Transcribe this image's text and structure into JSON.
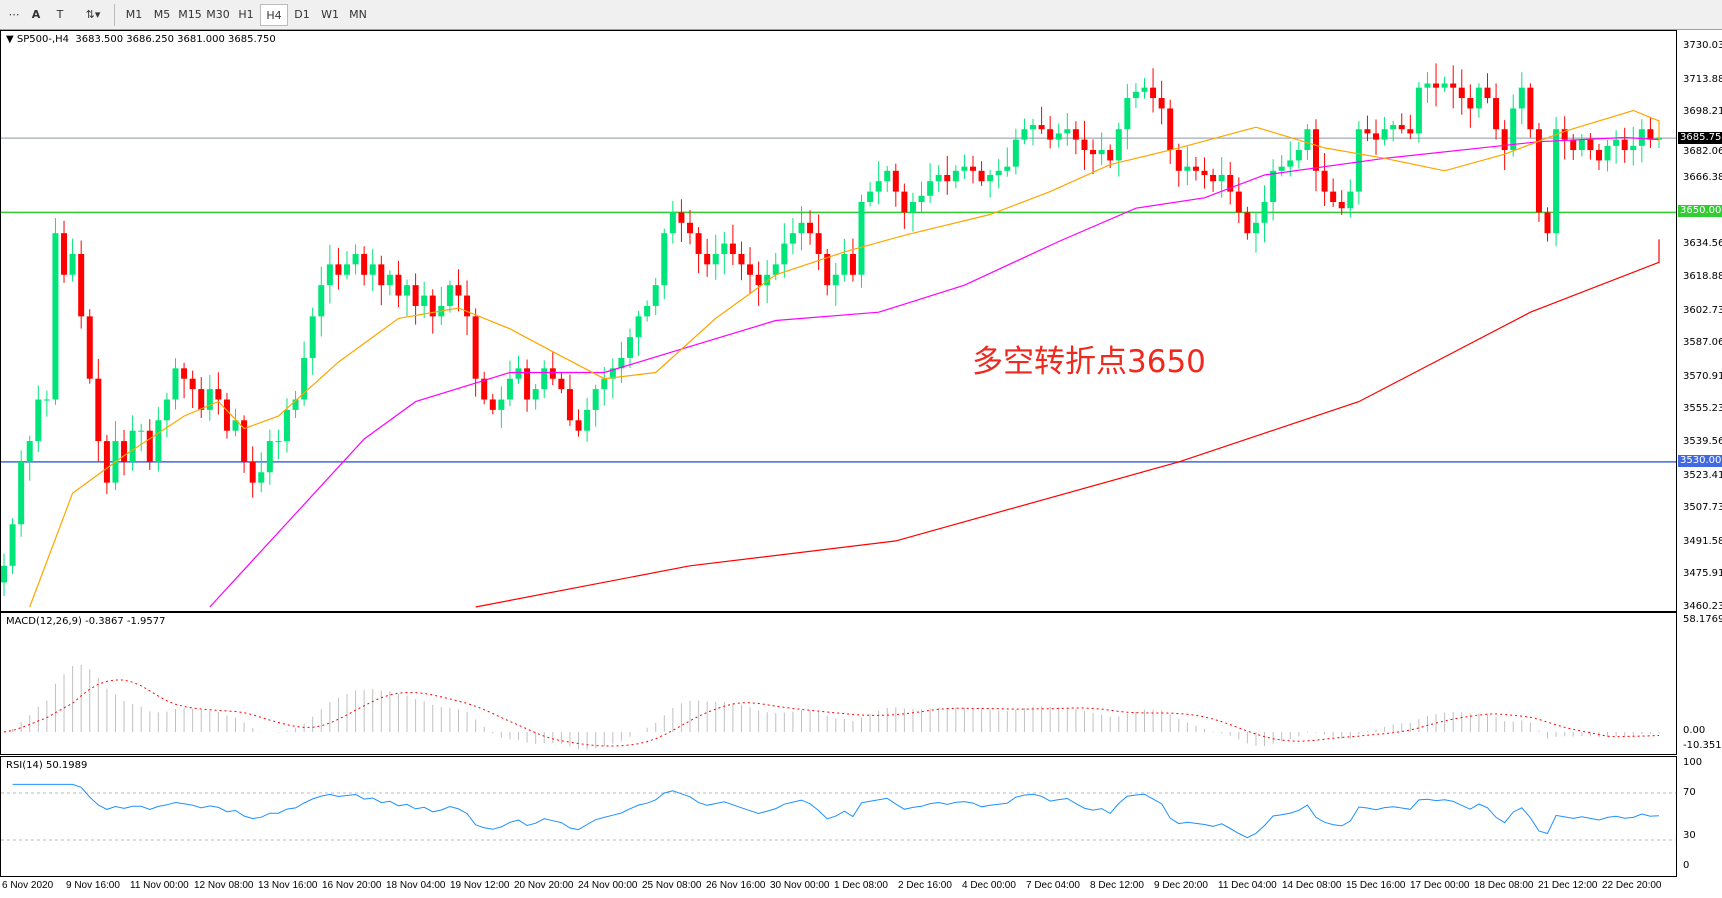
{
  "toolbar": {
    "tools": [
      "crosshair",
      "text-A",
      "text-label",
      "arrows"
    ],
    "timeframes": [
      "M1",
      "M5",
      "M15",
      "M30",
      "H1",
      "H4",
      "D1",
      "W1",
      "MN"
    ],
    "active": "H4"
  },
  "header": {
    "symbol": "SP500-,H4",
    "ohlc": "3683.500 3686.250 3681.000 3685.750"
  },
  "annotation": "多空转折点3650",
  "price_axis": [
    "3730.035",
    "3713.885",
    "3698.210",
    "3682.060",
    "3666.385",
    "3634.560",
    "3618.885",
    "3602.735",
    "3587.060",
    "3570.910",
    "3555.235",
    "3539.560",
    "3523.410",
    "3507.735",
    "3491.585",
    "3475.910",
    "3460.235"
  ],
  "levels": {
    "current": {
      "label": "3685.750",
      "value": 3685.75,
      "color": "#808080"
    },
    "green": {
      "label": "3650.000",
      "value": 3650,
      "color": "#32cd32"
    },
    "blue": {
      "label": "3530.000",
      "value": 3530,
      "color": "#4169e1"
    }
  },
  "macd": {
    "title": "MACD(12,26,9) -0.3867 -1.9577",
    "axis": [
      "58.1769",
      "0.00",
      "-10.351"
    ]
  },
  "rsi": {
    "title": "RSI(14) 50.1989",
    "axis": [
      "100",
      "70",
      "30",
      "0"
    ]
  },
  "time_axis": [
    "6 Nov 2020",
    "9 Nov 16:00",
    "11 Nov 00:00",
    "12 Nov 08:00",
    "13 Nov 16:00",
    "16 Nov 20:00",
    "18 Nov 04:00",
    "19 Nov 12:00",
    "20 Nov 20:00",
    "24 Nov 00:00",
    "25 Nov 08:00",
    "26 Nov 16:00",
    "30 Nov 00:00",
    "1 Dec 08:00",
    "2 Dec 16:00",
    "4 Dec 00:00",
    "7 Dec 04:00",
    "8 Dec 12:00",
    "9 Dec 20:00",
    "11 Dec 04:00",
    "14 Dec 08:00",
    "15 Dec 16:00",
    "17 Dec 00:00",
    "18 Dec 08:00",
    "21 Dec 12:00",
    "22 Dec 20:00"
  ],
  "chart_data": {
    "type": "candlestick",
    "ylim": [
      3460.235,
      3730.035
    ],
    "colors": {
      "bull": "#00e57a",
      "bear": "#ff0000",
      "ma_fast": "#ffa500",
      "ma_mid": "#ff00ff",
      "ma_slow": "#ff0000",
      "macd_hist": "#c0c0c0",
      "macd_signal": "#ff0000",
      "rsi": "#1e90ff"
    },
    "closes": [
      3480,
      3500,
      3530,
      3540,
      3560,
      3560,
      3640,
      3620,
      3630,
      3600,
      3570,
      3540,
      3520,
      3540,
      3530,
      3545,
      3545,
      3530,
      3550,
      3560,
      3575,
      3570,
      3565,
      3555,
      3565,
      3560,
      3545,
      3550,
      3530,
      3520,
      3525,
      3540,
      3540,
      3555,
      3560,
      3580,
      3600,
      3615,
      3625,
      3620,
      3625,
      3630,
      3620,
      3625,
      3615,
      3620,
      3610,
      3615,
      3605,
      3610,
      3600,
      3605,
      3615,
      3610,
      3600,
      3570,
      3560,
      3555,
      3560,
      3570,
      3575,
      3560,
      3565,
      3575,
      3570,
      3565,
      3550,
      3545,
      3555,
      3565,
      3570,
      3575,
      3580,
      3590,
      3600,
      3605,
      3615,
      3640,
      3650,
      3645,
      3640,
      3630,
      3625,
      3630,
      3635,
      3630,
      3625,
      3620,
      3615,
      3620,
      3625,
      3635,
      3640,
      3645,
      3640,
      3630,
      3615,
      3620,
      3630,
      3620,
      3655,
      3660,
      3665,
      3670,
      3660,
      3650,
      3655,
      3658,
      3665,
      3668,
      3665,
      3670,
      3672,
      3670,
      3665,
      3668,
      3670,
      3672,
      3685,
      3690,
      3692,
      3690,
      3685,
      3688,
      3690,
      3685,
      3680,
      3678,
      3680,
      3675,
      3690,
      3705,
      3708,
      3710,
      3705,
      3700,
      3680,
      3670,
      3672,
      3670,
      3668,
      3665,
      3668,
      3660,
      3650,
      3640,
      3645,
      3655,
      3670,
      3672,
      3675,
      3680,
      3690,
      3670,
      3660,
      3655,
      3652,
      3660,
      3690,
      3688,
      3685,
      3690,
      3692,
      3690,
      3688,
      3710,
      3712,
      3710,
      3712,
      3710,
      3705,
      3700,
      3710,
      3705,
      3690,
      3680,
      3700,
      3710,
      3690,
      3650,
      3640,
      3690,
      3685,
      3680,
      3685,
      3680,
      3675,
      3682,
      3685,
      3680,
      3682,
      3690,
      3685,
      3686
    ],
    "ma_fast": [
      [
        3,
        3460
      ],
      [
        8,
        3515
      ],
      [
        14,
        3533
      ],
      [
        21,
        3552
      ],
      [
        25,
        3559
      ],
      [
        28,
        3546
      ],
      [
        32,
        3552
      ],
      [
        39,
        3578
      ],
      [
        46,
        3599
      ],
      [
        53,
        3604
      ],
      [
        59,
        3594
      ],
      [
        64,
        3583
      ],
      [
        70,
        3570
      ],
      [
        76,
        3573
      ],
      [
        83,
        3599
      ],
      [
        90,
        3620
      ],
      [
        98,
        3631
      ],
      [
        105,
        3639
      ],
      [
        115,
        3649
      ],
      [
        122,
        3660
      ],
      [
        129,
        3673
      ],
      [
        137,
        3681
      ],
      [
        146,
        3691
      ],
      [
        154,
        3681
      ],
      [
        161,
        3676
      ],
      [
        168,
        3670
      ],
      [
        175,
        3678
      ],
      [
        182,
        3689
      ],
      [
        190,
        3699
      ],
      [
        199,
        3694
      ],
      [
        207,
        3686
      ],
      [
        211,
        3684
      ]
    ],
    "ma_mid": [
      [
        24,
        3460
      ],
      [
        42,
        3541
      ],
      [
        48,
        3559
      ],
      [
        59,
        3573
      ],
      [
        70,
        3573
      ],
      [
        78,
        3583
      ],
      [
        90,
        3598
      ],
      [
        102,
        3602
      ],
      [
        112,
        3615
      ],
      [
        123,
        3636
      ],
      [
        132,
        3652
      ],
      [
        140,
        3657
      ],
      [
        147,
        3668
      ],
      [
        161,
        3676
      ],
      [
        179,
        3684
      ],
      [
        189,
        3686
      ],
      [
        211,
        3685
      ]
    ],
    "ma_slow": [
      [
        55,
        3460
      ],
      [
        80,
        3480
      ],
      [
        104,
        3492
      ],
      [
        137,
        3530
      ],
      [
        158,
        3559
      ],
      [
        178,
        3602
      ],
      [
        196,
        3626
      ],
      [
        211,
        3637
      ]
    ]
  }
}
